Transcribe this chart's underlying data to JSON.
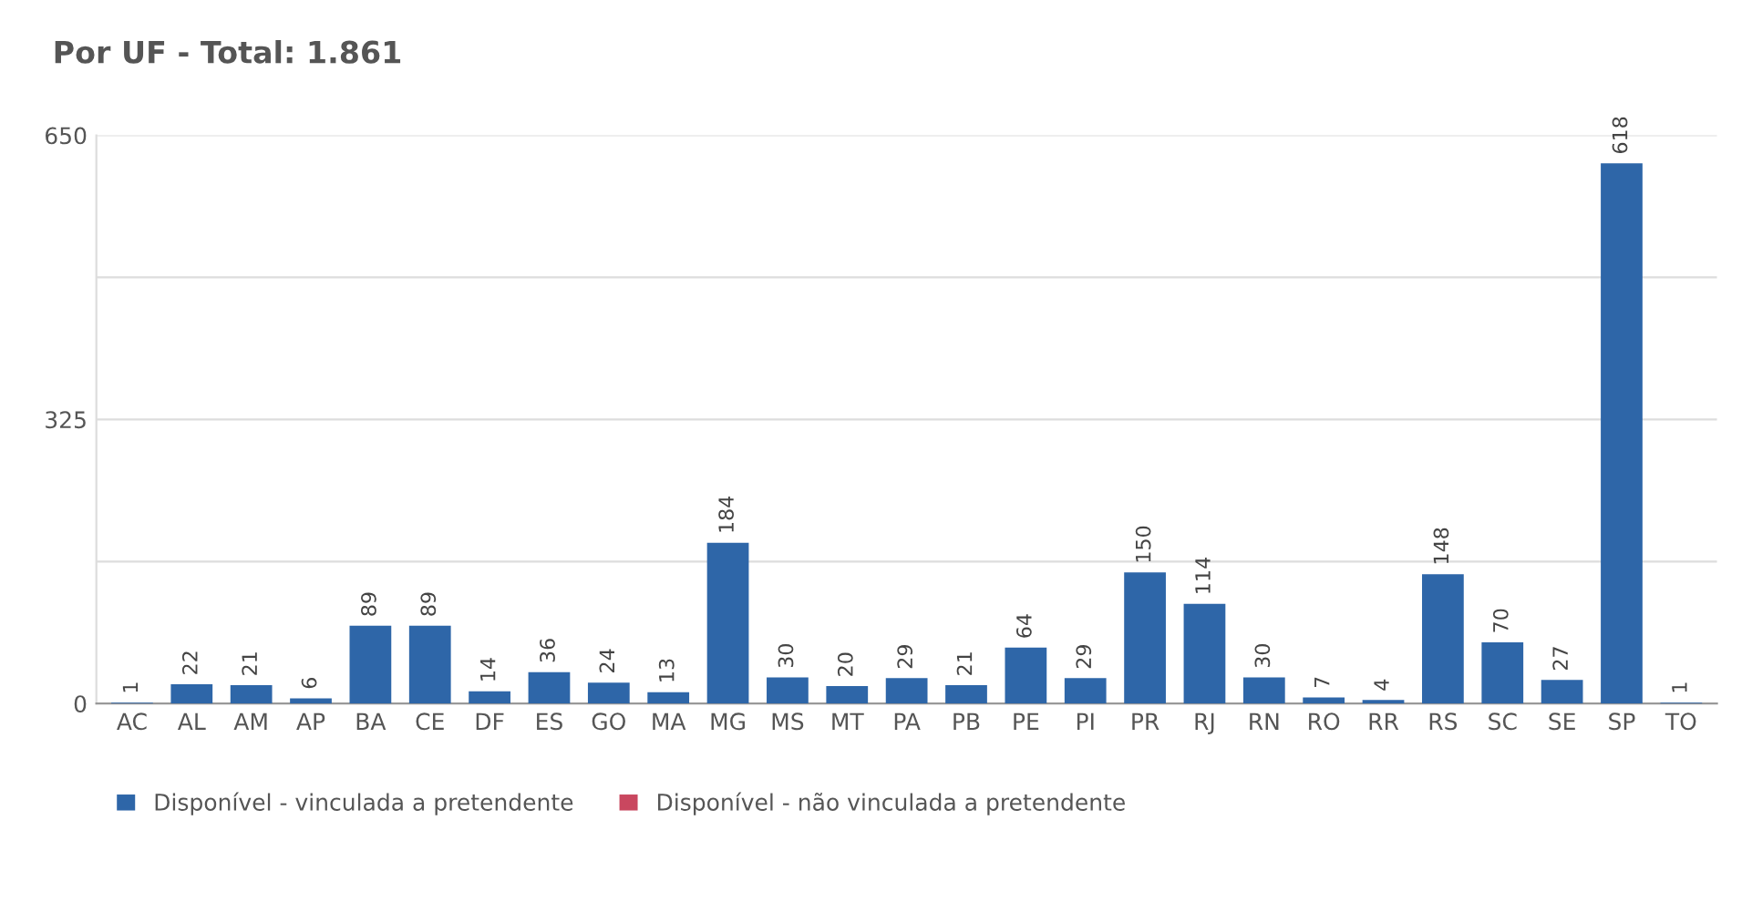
{
  "chart_data": {
    "type": "bar",
    "title": "Por UF - Total: 1.861",
    "categories": [
      "AC",
      "AL",
      "AM",
      "AP",
      "BA",
      "CE",
      "DF",
      "ES",
      "GO",
      "MA",
      "MG",
      "MS",
      "MT",
      "PA",
      "PB",
      "PE",
      "PI",
      "PR",
      "RJ",
      "RN",
      "RO",
      "RR",
      "RS",
      "SC",
      "SE",
      "SP",
      "TO"
    ],
    "series": [
      {
        "name": "Disponível - vinculada a pretendente",
        "color": "#2e66a8",
        "values": [
          1,
          22,
          21,
          6,
          89,
          89,
          14,
          36,
          24,
          13,
          184,
          30,
          20,
          29,
          21,
          64,
          29,
          150,
          114,
          30,
          7,
          4,
          148,
          70,
          27,
          618,
          1
        ]
      },
      {
        "name": "Disponível - não vinculada a pretendente",
        "color": "#c9475f",
        "values": [
          null,
          null,
          null,
          null,
          null,
          null,
          null,
          null,
          null,
          null,
          null,
          null,
          null,
          null,
          null,
          null,
          null,
          null,
          null,
          null,
          null,
          null,
          null,
          null,
          null,
          null,
          null
        ]
      }
    ],
    "ylim": [
      0,
      650
    ],
    "yticks": [
      0,
      {
        "value": 162.5,
        "label": null
      },
      325,
      {
        "value": 487.5,
        "label": null
      },
      650
    ],
    "grid": "y",
    "legend": "bottom",
    "data_labels": true
  }
}
